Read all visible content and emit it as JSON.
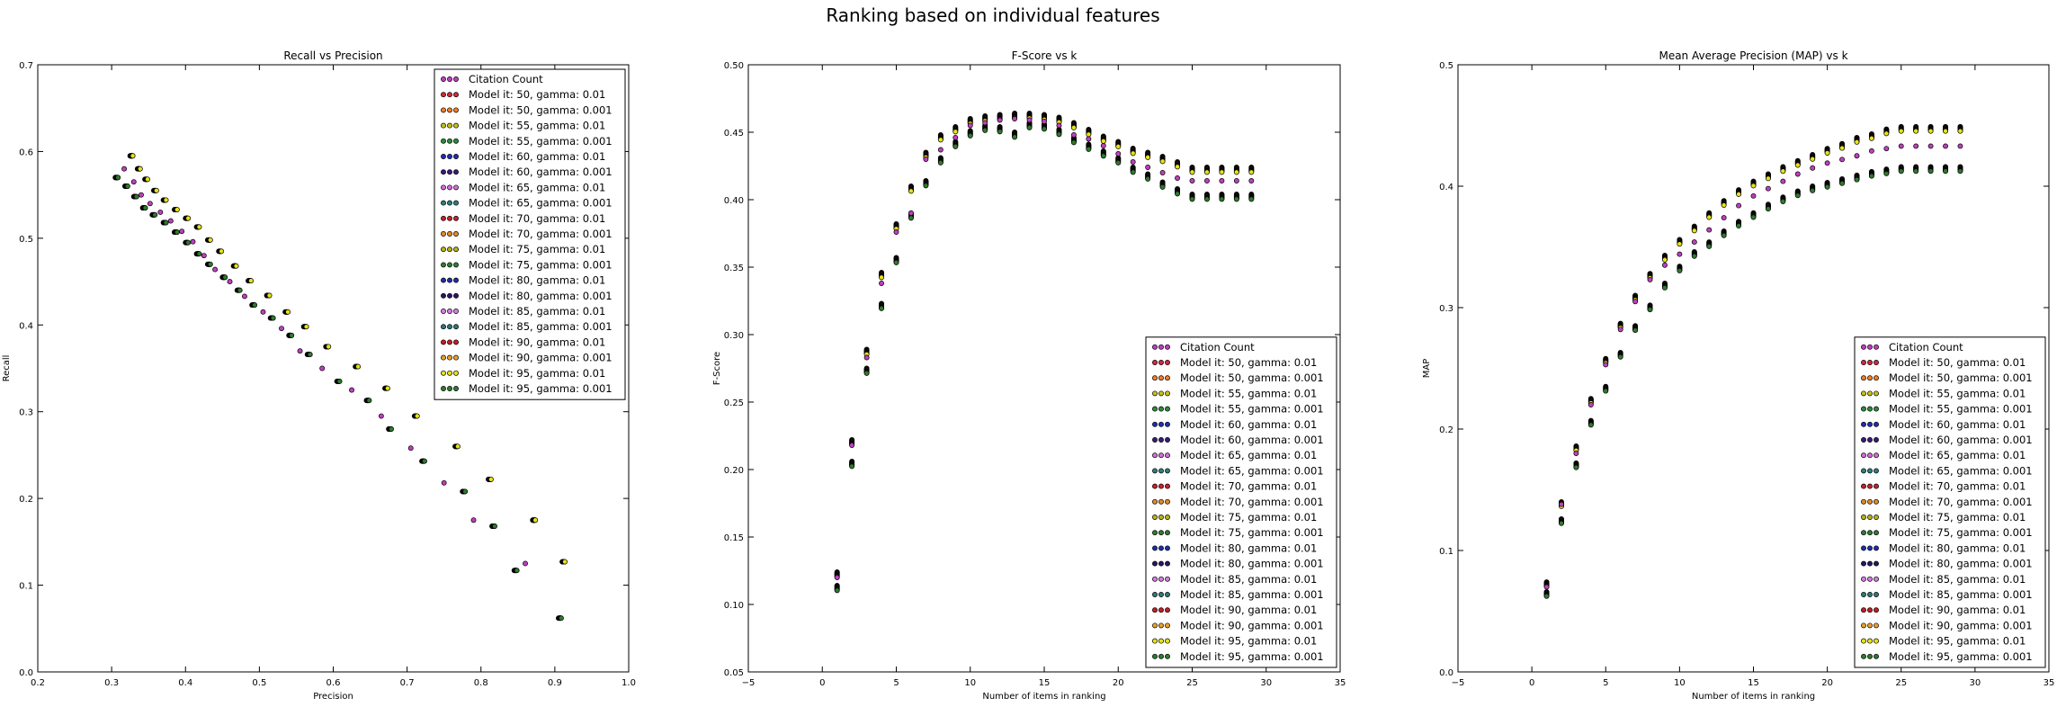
{
  "figure": {
    "title": "Ranking based on individual features"
  },
  "legend_entries": [
    {
      "label": "Citation Count",
      "color": "#bf3fbf"
    },
    {
      "label": "Model it: 50, gamma: 0.01",
      "color": "#d6273c"
    },
    {
      "label": "Model it: 50, gamma: 0.001",
      "color": "#f07f2a"
    },
    {
      "label": "Model it: 55, gamma: 0.01",
      "color": "#c2c01a"
    },
    {
      "label": "Model it: 55, gamma: 0.001",
      "color": "#2e8b3c"
    },
    {
      "label": "Model it: 60, gamma: 0.01",
      "color": "#1f2eb8"
    },
    {
      "label": "Model it: 60, gamma: 0.001",
      "color": "#3a1a7a"
    },
    {
      "label": "Model it: 65, gamma: 0.01",
      "color": "#d16fd6"
    },
    {
      "label": "Model it: 65, gamma: 0.001",
      "color": "#2b7f7a"
    },
    {
      "label": "Model it: 70, gamma: 0.01",
      "color": "#c8202a"
    },
    {
      "label": "Model it: 70, gamma: 0.001",
      "color": "#e08a2a"
    },
    {
      "label": "Model it: 75, gamma: 0.01",
      "color": "#b6b21a"
    },
    {
      "label": "Model it: 75, gamma: 0.001",
      "color": "#2e7d32"
    },
    {
      "label": "Model it: 80, gamma: 0.01",
      "color": "#1d2fa8"
    },
    {
      "label": "Model it: 80, gamma: 0.001",
      "color": "#2a1760"
    },
    {
      "label": "Model it: 85, gamma: 0.01",
      "color": "#d47fe0"
    },
    {
      "label": "Model it: 85, gamma: 0.001",
      "color": "#2a7a75"
    },
    {
      "label": "Model it: 90, gamma: 0.01",
      "color": "#c41e26"
    },
    {
      "label": "Model it: 90, gamma: 0.001",
      "color": "#e7a030"
    },
    {
      "label": "Model it: 95, gamma: 0.01",
      "color": "#e6e21a"
    },
    {
      "label": "Model it: 95, gamma: 0.001",
      "color": "#2f7a2f"
    }
  ],
  "chart_data": [
    {
      "type": "scatter",
      "title": "Recall vs Precision",
      "xlabel": "Precision",
      "ylabel": "Recall",
      "xlim": [
        0.2,
        1.0
      ],
      "ylim": [
        0.0,
        0.7
      ],
      "xticks": [
        "0.2",
        "0.3",
        "0.4",
        "0.5",
        "0.6",
        "0.7",
        "0.8",
        "0.9",
        "1.0"
      ],
      "yticks": [
        "0.0",
        "0.1",
        "0.2",
        "0.3",
        "0.4",
        "0.5",
        "0.6",
        "0.7"
      ],
      "legend_position": "top-right",
      "series": {
        "citation": [
          [
            0.317,
            0.58
          ],
          [
            0.33,
            0.565
          ],
          [
            0.34,
            0.55
          ],
          [
            0.352,
            0.54
          ],
          [
            0.366,
            0.53
          ],
          [
            0.38,
            0.52
          ],
          [
            0.395,
            0.508
          ],
          [
            0.41,
            0.496
          ],
          [
            0.425,
            0.48
          ],
          [
            0.44,
            0.464
          ],
          [
            0.46,
            0.45
          ],
          [
            0.48,
            0.433
          ],
          [
            0.505,
            0.415
          ],
          [
            0.53,
            0.396
          ],
          [
            0.555,
            0.37
          ],
          [
            0.585,
            0.35
          ],
          [
            0.625,
            0.325
          ],
          [
            0.665,
            0.295
          ],
          [
            0.705,
            0.258
          ],
          [
            0.75,
            0.218
          ],
          [
            0.79,
            0.175
          ],
          [
            0.86,
            0.125
          ]
        ],
        "model_high": [
          [
            0.325,
            0.595
          ],
          [
            0.335,
            0.58
          ],
          [
            0.345,
            0.568
          ],
          [
            0.357,
            0.555
          ],
          [
            0.37,
            0.544
          ],
          [
            0.385,
            0.533
          ],
          [
            0.4,
            0.523
          ],
          [
            0.415,
            0.513
          ],
          [
            0.43,
            0.498
          ],
          [
            0.445,
            0.485
          ],
          [
            0.465,
            0.468
          ],
          [
            0.485,
            0.451
          ],
          [
            0.51,
            0.434
          ],
          [
            0.535,
            0.415
          ],
          [
            0.56,
            0.398
          ],
          [
            0.59,
            0.375
          ],
          [
            0.63,
            0.352
          ],
          [
            0.67,
            0.327
          ],
          [
            0.71,
            0.295
          ],
          [
            0.765,
            0.26
          ],
          [
            0.81,
            0.222
          ],
          [
            0.87,
            0.175
          ],
          [
            0.91,
            0.127
          ]
        ],
        "model_low": [
          [
            0.305,
            0.57
          ],
          [
            0.318,
            0.56
          ],
          [
            0.33,
            0.548
          ],
          [
            0.342,
            0.535
          ],
          [
            0.355,
            0.527
          ],
          [
            0.37,
            0.518
          ],
          [
            0.385,
            0.507
          ],
          [
            0.4,
            0.495
          ],
          [
            0.415,
            0.482
          ],
          [
            0.43,
            0.47
          ],
          [
            0.45,
            0.455
          ],
          [
            0.47,
            0.44
          ],
          [
            0.49,
            0.423
          ],
          [
            0.515,
            0.408
          ],
          [
            0.54,
            0.388
          ],
          [
            0.565,
            0.366
          ],
          [
            0.605,
            0.335
          ],
          [
            0.645,
            0.313
          ],
          [
            0.675,
            0.28
          ],
          [
            0.72,
            0.243
          ],
          [
            0.775,
            0.208
          ],
          [
            0.815,
            0.168
          ],
          [
            0.845,
            0.117
          ],
          [
            0.905,
            0.062
          ]
        ]
      }
    },
    {
      "type": "scatter",
      "title": "F-Score vs k",
      "xlabel": "Number of items in ranking",
      "ylabel": "F-Score",
      "xlim": [
        -5,
        35
      ],
      "ylim": [
        0.05,
        0.5
      ],
      "xticks": [
        "−5",
        "0",
        "5",
        "10",
        "15",
        "20",
        "25",
        "30",
        "35"
      ],
      "yticks": [
        "0.05",
        "0.10",
        "0.15",
        "0.20",
        "0.25",
        "0.30",
        "0.35",
        "0.40",
        "0.45",
        "0.50"
      ],
      "legend_position": "bottom-right",
      "k": [
        1,
        2,
        3,
        4,
        5,
        6,
        7,
        8,
        9,
        10,
        11,
        12,
        13,
        14,
        15,
        16,
        17,
        18,
        19,
        20,
        21,
        22,
        23,
        24,
        25,
        26,
        27,
        28,
        29
      ],
      "series": {
        "citation": [
          0.12,
          0.218,
          0.283,
          0.338,
          0.376,
          0.39,
          0.43,
          0.437,
          0.446,
          0.455,
          0.457,
          0.459,
          0.46,
          0.459,
          0.458,
          0.455,
          0.448,
          0.445,
          0.44,
          0.434,
          0.428,
          0.424,
          0.42,
          0.416,
          0.414,
          0.414,
          0.414,
          0.414,
          0.414
        ],
        "model_high": [
          0.124,
          0.222,
          0.289,
          0.346,
          0.382,
          0.41,
          0.435,
          0.448,
          0.454,
          0.46,
          0.462,
          0.463,
          0.464,
          0.464,
          0.463,
          0.461,
          0.457,
          0.452,
          0.447,
          0.443,
          0.438,
          0.435,
          0.432,
          0.428,
          0.424,
          0.424,
          0.424,
          0.424,
          0.424
        ],
        "model_low": [
          0.114,
          0.206,
          0.275,
          0.323,
          0.357,
          0.39,
          0.414,
          0.431,
          0.443,
          0.451,
          0.455,
          0.454,
          0.45,
          0.457,
          0.456,
          0.452,
          0.446,
          0.441,
          0.436,
          0.431,
          0.424,
          0.419,
          0.413,
          0.408,
          0.404,
          0.404,
          0.404,
          0.404,
          0.404
        ]
      }
    },
    {
      "type": "scatter",
      "title": "Mean Average Precision (MAP) vs k",
      "xlabel": "Number of items in ranking",
      "ylabel": "MAP",
      "xlim": [
        -5,
        35
      ],
      "ylim": [
        0.0,
        0.5
      ],
      "xticks": [
        "−5",
        "0",
        "5",
        "10",
        "15",
        "20",
        "25",
        "30",
        "35"
      ],
      "yticks": [
        "0.0",
        "0.1",
        "0.2",
        "0.3",
        "0.4",
        "0.5"
      ],
      "legend_position": "bottom-right",
      "k": [
        1,
        2,
        3,
        4,
        5,
        6,
        7,
        8,
        9,
        10,
        11,
        12,
        13,
        14,
        15,
        16,
        17,
        18,
        19,
        20,
        21,
        22,
        23,
        24,
        25,
        26,
        27,
        28,
        29
      ],
      "series": {
        "citation": [
          0.07,
          0.138,
          0.18,
          0.22,
          0.253,
          0.282,
          0.305,
          0.323,
          0.335,
          0.344,
          0.354,
          0.364,
          0.374,
          0.384,
          0.392,
          0.398,
          0.404,
          0.41,
          0.415,
          0.419,
          0.422,
          0.425,
          0.429,
          0.431,
          0.433,
          0.433,
          0.433,
          0.433,
          0.433
        ],
        "model_high": [
          0.074,
          0.14,
          0.186,
          0.225,
          0.258,
          0.287,
          0.31,
          0.328,
          0.343,
          0.356,
          0.367,
          0.378,
          0.388,
          0.397,
          0.404,
          0.41,
          0.416,
          0.421,
          0.426,
          0.431,
          0.435,
          0.44,
          0.443,
          0.447,
          0.449,
          0.449,
          0.449,
          0.449,
          0.449
        ],
        "model_low": [
          0.066,
          0.126,
          0.172,
          0.207,
          0.235,
          0.263,
          0.285,
          0.302,
          0.32,
          0.334,
          0.346,
          0.354,
          0.363,
          0.371,
          0.378,
          0.385,
          0.391,
          0.396,
          0.4,
          0.403,
          0.406,
          0.409,
          0.412,
          0.414,
          0.416,
          0.416,
          0.416,
          0.416,
          0.416
        ]
      }
    }
  ]
}
